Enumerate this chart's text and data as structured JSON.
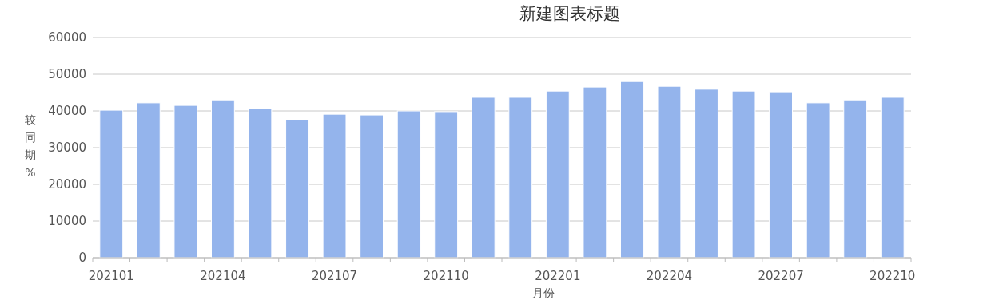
{
  "chart_data": {
    "type": "bar",
    "title": "新建图表标题",
    "xlabel": "月份",
    "ylabel": "较同期%",
    "categories": [
      "202101",
      null,
      null,
      "202104",
      null,
      null,
      "202107",
      null,
      null,
      "202110",
      null,
      null,
      "202201",
      null,
      null,
      "202204",
      null,
      null,
      "202207",
      null,
      null,
      "202210"
    ],
    "values": [
      40200,
      42200,
      41500,
      43000,
      40600,
      37600,
      39100,
      38900,
      40000,
      39800,
      43700,
      43700,
      45400,
      46500,
      48000,
      46700,
      45900,
      45400,
      45200,
      42200,
      43000,
      43700
    ],
    "color": "#94b4ec",
    "ylim": [
      0,
      60000
    ],
    "yticks": [
      0,
      10000,
      20000,
      30000,
      40000,
      50000,
      60000
    ],
    "grid": "y"
  }
}
